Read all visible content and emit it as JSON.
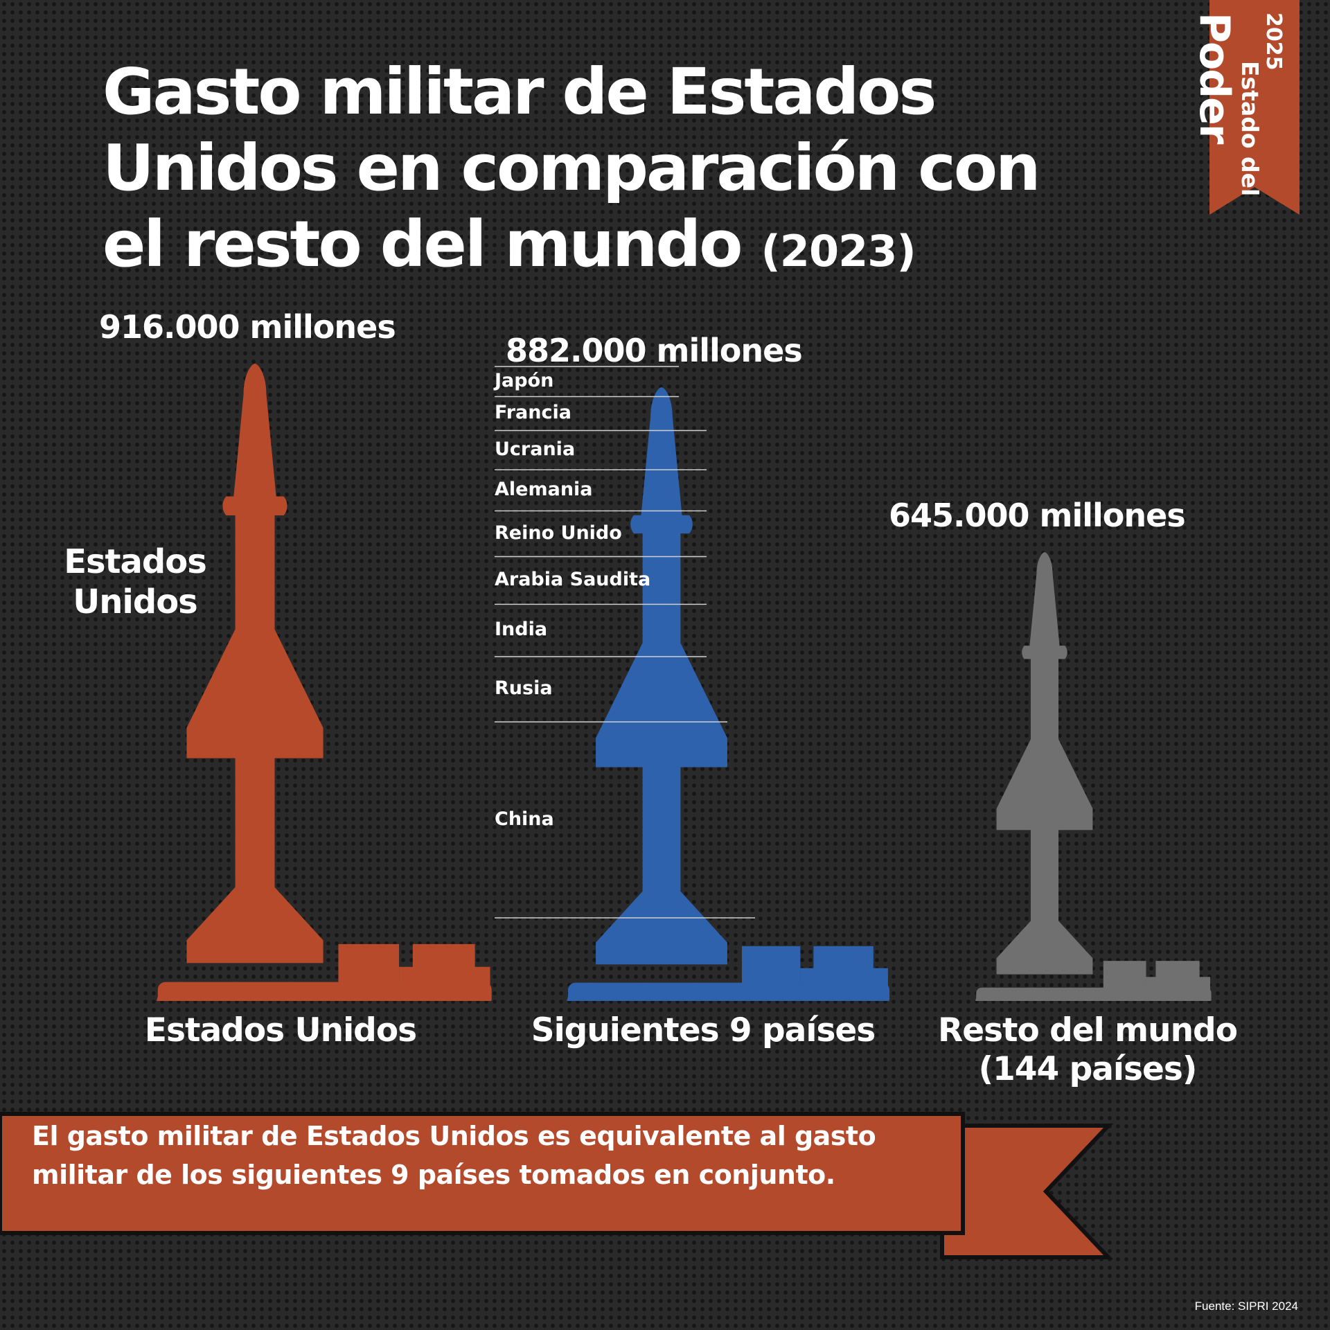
{
  "title": "Gasto militar de Estados Unidos en comparación con el resto del mundo",
  "title_year": "(2023)",
  "brand": {
    "year": "2025",
    "line1": "Estado del",
    "line2": "Poder",
    "color": "#b44a2c"
  },
  "us_inline_label": "Estados Unidos",
  "chart_data": {
    "type": "bar",
    "title": "Gasto militar de Estados Unidos en comparación con el resto del mundo (2023)",
    "unit": "millones",
    "categories": [
      "Estados Unidos",
      "Siguientes 9 países",
      "Resto del mundo (144 países)"
    ],
    "values": [
      916000,
      882000,
      645000
    ],
    "value_labels": [
      "916.000 millones",
      "882.000 millones",
      "645.000 millones"
    ],
    "colors": [
      "#b74a2b",
      "#2f62ad",
      "#707070"
    ],
    "stack_segments": [
      "Japón",
      "Francia",
      "Ucrania",
      "Alemania",
      "Reino Unido",
      "Arabia Saudita",
      "India",
      "Rusia",
      "China"
    ]
  },
  "categories_display": [
    "Estados Unidos",
    "Siguientes 9 países",
    "Resto del mundo",
    "(144 países)"
  ],
  "banner": {
    "text": "El gasto militar de Estados Unidos es equivalente al gasto militar de los siguientes 9 países tomados en conjunto.",
    "color": "#b44a2c"
  },
  "source": "Fuente: SIPRI 2024"
}
